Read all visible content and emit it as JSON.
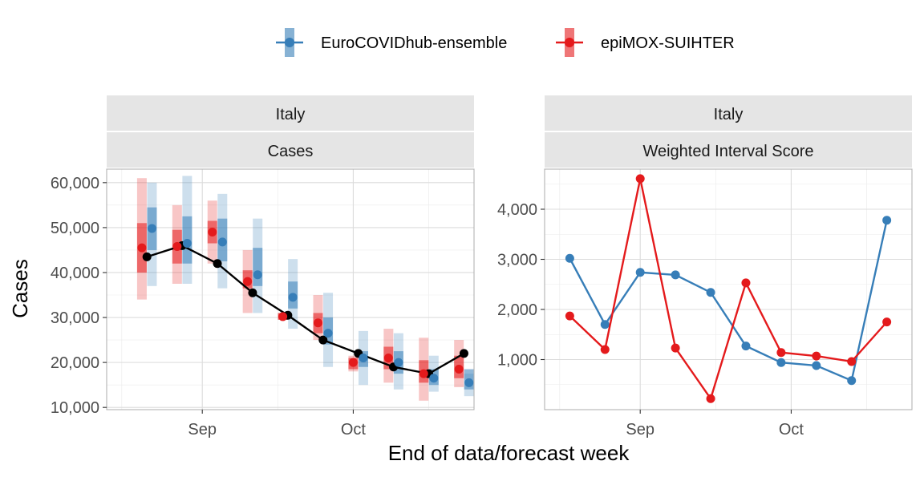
{
  "legend": {
    "items": [
      {
        "label": "EuroCOVIDhub-ensemble",
        "color": "#377EB8"
      },
      {
        "label": "epiMOX-SUIHTER",
        "color": "#E41A1C"
      }
    ]
  },
  "x_axis_title": "End of data/forecast week",
  "chart_data": [
    {
      "type": "line",
      "facet": [
        "Italy",
        "Cases"
      ],
      "ylabel": "Cases",
      "xlabel": "End of data/forecast week",
      "x_ticks": [
        {
          "label": "Sep",
          "date": "2021-09-01"
        },
        {
          "label": "Oct",
          "date": "2021-10-01"
        }
      ],
      "xlim": [
        "2021-08-13",
        "2021-10-25"
      ],
      "y_ticks": [
        10000,
        20000,
        30000,
        40000,
        50000,
        60000
      ],
      "y_tick_labels": [
        "10,000",
        "20,000",
        "30,000",
        "40,000",
        "50,000",
        "60,000"
      ],
      "ylim": [
        9500,
        63000
      ],
      "truth": {
        "color": "#000000",
        "x": [
          "2021-08-21",
          "2021-08-28",
          "2021-09-04",
          "2021-09-11",
          "2021-09-18",
          "2021-09-25",
          "2021-10-02",
          "2021-10-09",
          "2021-10-16",
          "2021-10-23"
        ],
        "values": [
          43500,
          46000,
          42000,
          35500,
          30500,
          25000,
          22000,
          19000,
          17500,
          22000
        ]
      },
      "series": [
        {
          "name": "EuroCOVIDhub-ensemble",
          "color": "#377EB8",
          "x": [
            "2021-08-22",
            "2021-08-29",
            "2021-09-05",
            "2021-09-12",
            "2021-09-19",
            "2021-09-26",
            "2021-10-03",
            "2021-10-10",
            "2021-10-17",
            "2021-10-24"
          ],
          "median": [
            49800,
            46500,
            46800,
            39500,
            34500,
            26500,
            21000,
            20000,
            16500,
            15500
          ],
          "inner": [
            [
              45000,
              54500
            ],
            [
              42000,
              52500
            ],
            [
              42500,
              52000
            ],
            [
              37000,
              45500
            ],
            [
              32000,
              38000
            ],
            [
              24000,
              30000
            ],
            [
              19000,
              22500
            ],
            [
              17500,
              22500
            ],
            [
              15000,
              18500
            ],
            [
              14000,
              18500
            ]
          ],
          "outer": [
            [
              37000,
              60000
            ],
            [
              37500,
              61500
            ],
            [
              36500,
              57500
            ],
            [
              31000,
              52000
            ],
            [
              27500,
              43000
            ],
            [
              19000,
              35500
            ],
            [
              15000,
              27000
            ],
            [
              14000,
              26500
            ],
            [
              13500,
              21500
            ],
            [
              12500,
              17500
            ]
          ]
        },
        {
          "name": "epiMOX-SUIHTER",
          "color": "#E41A1C",
          "x": [
            "2021-08-20",
            "2021-08-27",
            "2021-09-03",
            "2021-09-10",
            "2021-09-17",
            "2021-09-24",
            "2021-10-01",
            "2021-10-08",
            "2021-10-15",
            "2021-10-22"
          ],
          "median": [
            45500,
            45800,
            49000,
            38000,
            30200,
            28800,
            20000,
            21000,
            17500,
            18500
          ],
          "inner": [
            [
              40000,
              51000
            ],
            [
              42000,
              49500
            ],
            [
              46500,
              51500
            ],
            [
              36500,
              40500
            ],
            [
              29500,
              31000
            ],
            [
              26500,
              31000
            ],
            [
              18500,
              21000
            ],
            [
              18500,
              23500
            ],
            [
              15500,
              20500
            ],
            [
              16500,
              21500
            ]
          ],
          "outer": [
            [
              34000,
              61000
            ],
            [
              37500,
              55000
            ],
            [
              42000,
              56000
            ],
            [
              31000,
              45000
            ],
            [
              29500,
              31000
            ],
            [
              25000,
              35000
            ],
            [
              18000,
              21500
            ],
            [
              15500,
              27500
            ],
            [
              11500,
              25500
            ],
            [
              14500,
              25000
            ]
          ]
        }
      ]
    },
    {
      "type": "line",
      "facet": [
        "Italy",
        "Weighted Interval Score"
      ],
      "x_ticks": [
        {
          "label": "Sep",
          "date": "2021-09-01"
        },
        {
          "label": "Oct",
          "date": "2021-10-01"
        }
      ],
      "xlim": [
        "2021-08-13",
        "2021-10-25"
      ],
      "y_ticks": [
        1000,
        2000,
        3000,
        4000
      ],
      "y_tick_labels": [
        "1,000",
        "2,000",
        "3,000",
        "4,000"
      ],
      "ylim": [
        0,
        4800
      ],
      "series": [
        {
          "name": "EuroCOVIDhub-ensemble",
          "color": "#377EB8",
          "x": [
            "2021-08-18",
            "2021-08-25",
            "2021-09-01",
            "2021-09-08",
            "2021-09-15",
            "2021-09-22",
            "2021-09-29",
            "2021-10-06",
            "2021-10-13",
            "2021-10-20"
          ],
          "values": [
            3020,
            1700,
            2740,
            2690,
            2340,
            1270,
            940,
            880,
            580,
            3780
          ]
        },
        {
          "name": "epiMOX-SUIHTER",
          "color": "#E41A1C",
          "x": [
            "2021-08-18",
            "2021-08-25",
            "2021-09-01",
            "2021-09-08",
            "2021-09-15",
            "2021-09-22",
            "2021-09-29",
            "2021-10-06",
            "2021-10-13",
            "2021-10-20"
          ],
          "values": [
            1870,
            1200,
            4610,
            1230,
            220,
            2530,
            1140,
            1070,
            960,
            1750
          ]
        }
      ]
    }
  ]
}
